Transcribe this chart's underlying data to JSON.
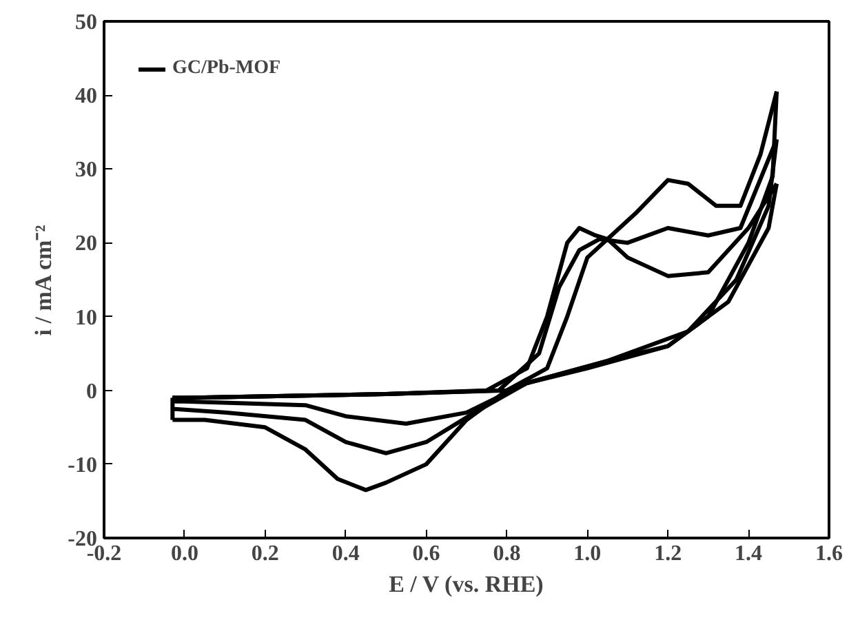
{
  "chart_data": {
    "type": "line",
    "xlabel": "E / V (vs. RHE)",
    "ylabel": "i / mA cm⁻²",
    "xlim": [
      -0.2,
      1.6
    ],
    "ylim": [
      -20,
      50
    ],
    "xticks": [
      {
        "value": -0.2,
        "label": "-0.2"
      },
      {
        "value": 0.0,
        "label": "0.0"
      },
      {
        "value": 0.2,
        "label": "0.2"
      },
      {
        "value": 0.4,
        "label": "0.4"
      },
      {
        "value": 0.6,
        "label": "0.6"
      },
      {
        "value": 0.8,
        "label": "0.8"
      },
      {
        "value": 1.0,
        "label": "1.0"
      },
      {
        "value": 1.2,
        "label": "1.2"
      },
      {
        "value": 1.4,
        "label": "1.4"
      },
      {
        "value": 1.6,
        "label": "1.6"
      }
    ],
    "yticks": [
      -20,
      -10,
      0,
      10,
      20,
      30,
      40,
      50
    ],
    "grid": false,
    "legend": "top left",
    "marker": "none",
    "line_style": "solid",
    "series": [
      {
        "name": "GC/Pb-MOF",
        "color": "#000000",
        "x": [
          -0.03,
          0.0,
          0.5,
          0.75,
          0.85,
          0.9,
          0.95,
          0.98,
          1.02,
          1.05,
          1.12,
          1.2,
          1.25,
          1.32,
          1.38,
          1.43,
          1.47
        ],
        "values": [
          -1,
          -1,
          -0.5,
          0,
          3,
          10,
          20,
          22,
          21,
          20.5,
          24,
          28.5,
          28,
          25,
          25,
          32,
          40.5
        ]
      },
      {
        "color": "#000000",
        "x": [
          1.47,
          1.46,
          1.4,
          1.3,
          1.2,
          1.05,
          0.95,
          0.85,
          0.8,
          0.7,
          0.6,
          0.5,
          0.45,
          0.38,
          0.3,
          0.2,
          0.05,
          -0.03
        ],
        "values": [
          40.5,
          29,
          20,
          10,
          6,
          4,
          2.5,
          1,
          0,
          -4,
          -10,
          -12.5,
          -13.5,
          -12,
          -8,
          -5,
          -4,
          -4
        ]
      },
      {
        "color": "#000000",
        "x": [
          -0.03,
          0.0,
          0.5,
          0.78,
          0.88,
          0.93,
          0.98,
          1.03,
          1.1,
          1.2,
          1.3,
          1.38,
          1.47
        ],
        "values": [
          -1,
          -1,
          -0.5,
          0,
          5,
          14,
          19,
          20.5,
          20,
          22,
          21,
          22,
          34
        ]
      },
      {
        "color": "#000000",
        "x": [
          1.47,
          1.45,
          1.37,
          1.25,
          1.05,
          0.85,
          0.72,
          0.6,
          0.5,
          0.4,
          0.3,
          0.1,
          -0.03
        ],
        "values": [
          34,
          25,
          15,
          8,
          4,
          1,
          -3,
          -7,
          -8.5,
          -7,
          -4,
          -3,
          -2.5
        ]
      },
      {
        "color": "#000000",
        "x": [
          -0.03,
          0.0,
          0.5,
          0.8,
          0.9,
          0.95,
          1.0,
          1.05,
          1.1,
          1.2,
          1.3,
          1.4,
          1.47
        ],
        "values": [
          -1,
          -1,
          -0.5,
          0,
          3,
          10,
          18,
          20.5,
          18,
          15.5,
          16,
          22,
          28
        ]
      },
      {
        "color": "#000000",
        "x": [
          1.47,
          1.45,
          1.35,
          1.2,
          1.0,
          0.85,
          0.7,
          0.55,
          0.4,
          0.3,
          0.0,
          -0.03
        ],
        "values": [
          28,
          22,
          12,
          6,
          3,
          1,
          -3,
          -4.5,
          -3.5,
          -2,
          -1.5,
          -1.5
        ]
      },
      {
        "color": "#000000",
        "x": [
          -0.03,
          -0.03
        ],
        "values": [
          -4,
          -1
        ]
      }
    ]
  }
}
